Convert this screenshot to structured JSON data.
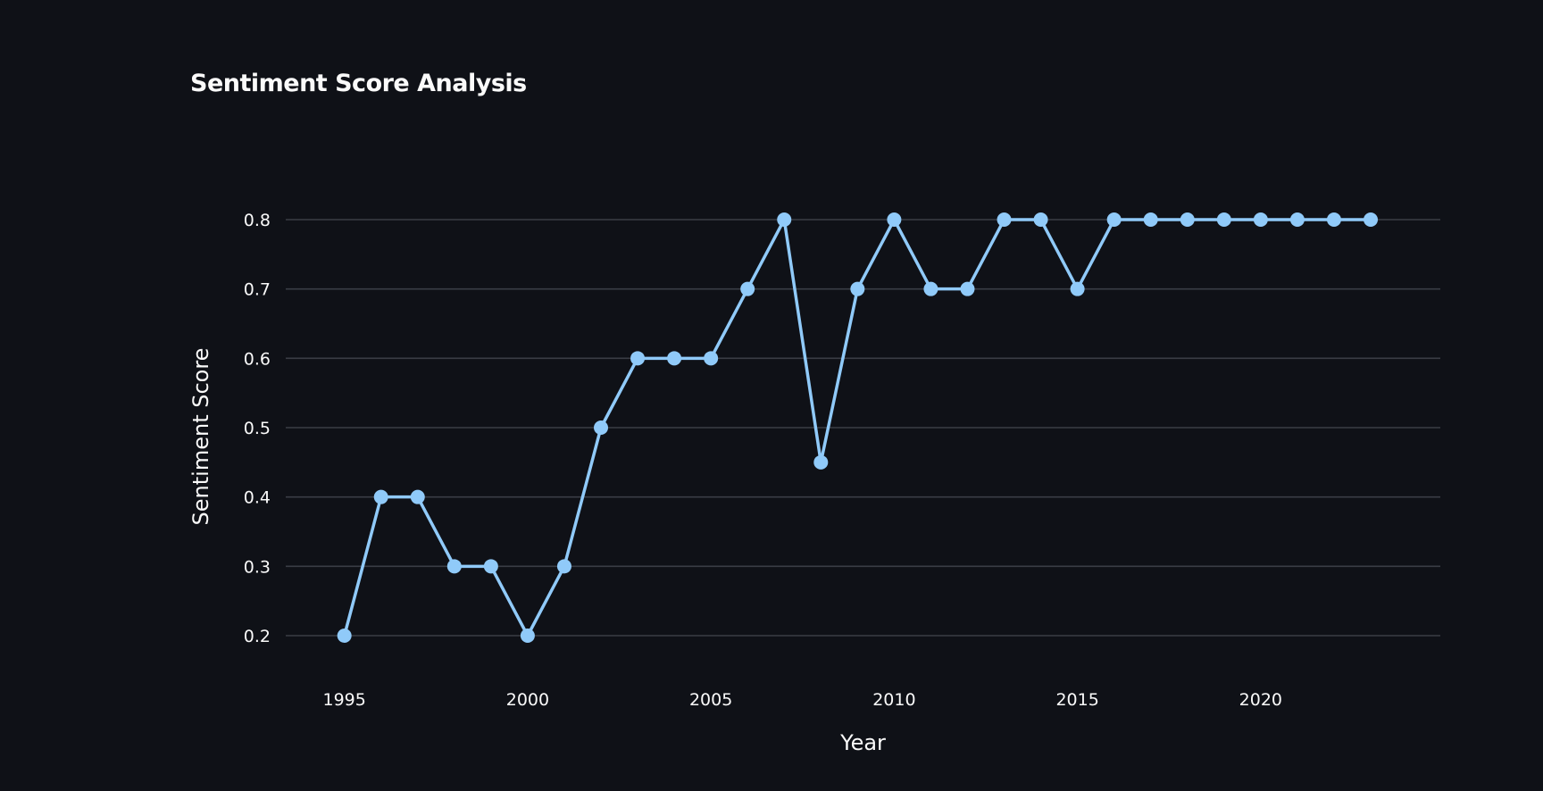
{
  "chart_data": {
    "type": "line",
    "title": "Sentiment Score Analysis",
    "xlabel": "Year",
    "ylabel": "Sentiment Score",
    "x": [
      1995,
      1996,
      1997,
      1998,
      1999,
      2000,
      2001,
      2002,
      2003,
      2004,
      2005,
      2006,
      2007,
      2008,
      2009,
      2010,
      2011,
      2012,
      2013,
      2014,
      2015,
      2016,
      2017,
      2018,
      2019,
      2020,
      2021,
      2022,
      2023
    ],
    "series": [
      {
        "values": [
          0.2,
          0.4,
          0.4,
          0.3,
          0.3,
          0.2,
          0.3,
          0.5,
          0.6,
          0.6,
          0.6,
          0.7,
          0.8,
          0.45,
          0.7,
          0.8,
          0.7,
          0.7,
          0.8,
          0.8,
          0.7,
          0.8,
          0.8,
          0.8,
          0.8,
          0.8,
          0.8,
          0.8,
          0.8
        ],
        "color": "#90caf9"
      }
    ],
    "xticks": [
      1995,
      2000,
      2005,
      2010,
      2015,
      2020
    ],
    "yticks": [
      0.2,
      0.3,
      0.4,
      0.5,
      0.6,
      0.7,
      0.8
    ],
    "xlim": [
      1993.4,
      2024.9
    ],
    "ylim": [
      0.2,
      0.8
    ],
    "grid": "horizontal",
    "background": "#0f1117",
    "gridColor": "#3a3d45",
    "textColor": "#fafafa"
  }
}
